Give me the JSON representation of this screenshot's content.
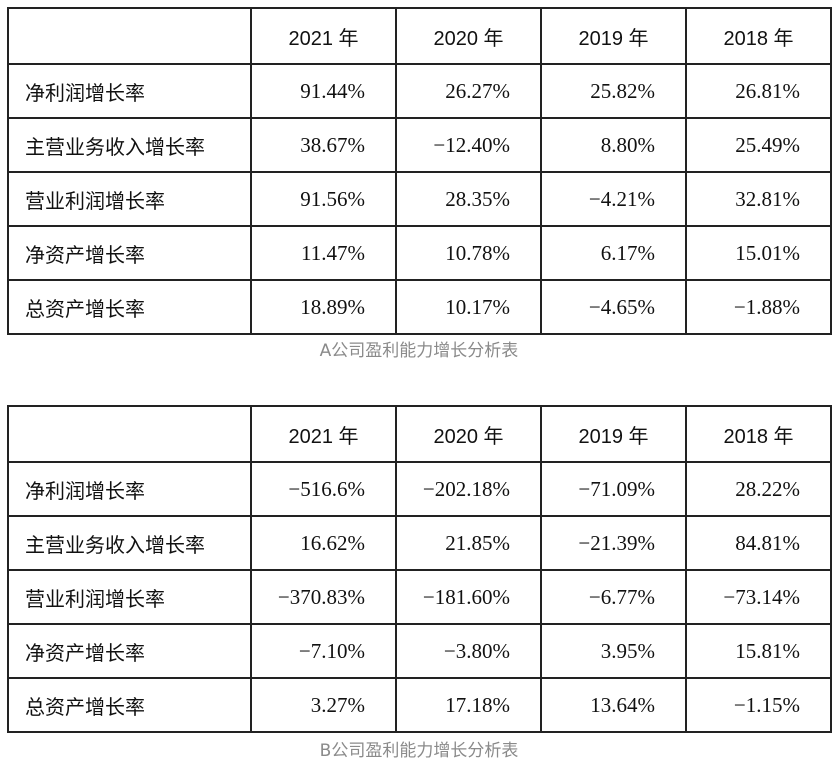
{
  "tables": [
    {
      "caption": "A公司盈利能力增长分析表",
      "header": [
        "",
        "2021 年",
        "2020 年",
        "2019 年",
        "2018 年"
      ],
      "rows": [
        {
          "label": "净利润增长率",
          "values": [
            "91.44%",
            "26.27%",
            "25.82%",
            "26.81%"
          ]
        },
        {
          "label": "主营业务收入增长率",
          "values": [
            "38.67%",
            "−12.40%",
            "8.80%",
            "25.49%"
          ]
        },
        {
          "label": "营业利润增长率",
          "values": [
            "91.56%",
            "28.35%",
            "−4.21%",
            "32.81%"
          ]
        },
        {
          "label": "净资产增长率",
          "values": [
            "11.47%",
            "10.78%",
            "6.17%",
            "15.01%"
          ]
        },
        {
          "label": "总资产增长率",
          "values": [
            "18.89%",
            "10.17%",
            "−4.65%",
            "−1.88%"
          ]
        }
      ]
    },
    {
      "caption": "B公司盈利能力增长分析表",
      "header": [
        "",
        "2021 年",
        "2020 年",
        "2019 年",
        "2018 年"
      ],
      "rows": [
        {
          "label": "净利润增长率",
          "values": [
            "−516.6%",
            "−202.18%",
            "−71.09%",
            "28.22%"
          ]
        },
        {
          "label": "主营业务收入增长率",
          "values": [
            "16.62%",
            "21.85%",
            "−21.39%",
            "84.81%"
          ]
        },
        {
          "label": "营业利润增长率",
          "values": [
            "−370.83%",
            "−181.60%",
            "−6.77%",
            "−73.14%"
          ]
        },
        {
          "label": "净资产增长率",
          "values": [
            "−7.10%",
            "−3.80%",
            "3.95%",
            "15.81%"
          ]
        },
        {
          "label": "总资产增长率",
          "values": [
            "3.27%",
            "17.18%",
            "13.64%",
            "−1.15%"
          ]
        }
      ]
    }
  ]
}
